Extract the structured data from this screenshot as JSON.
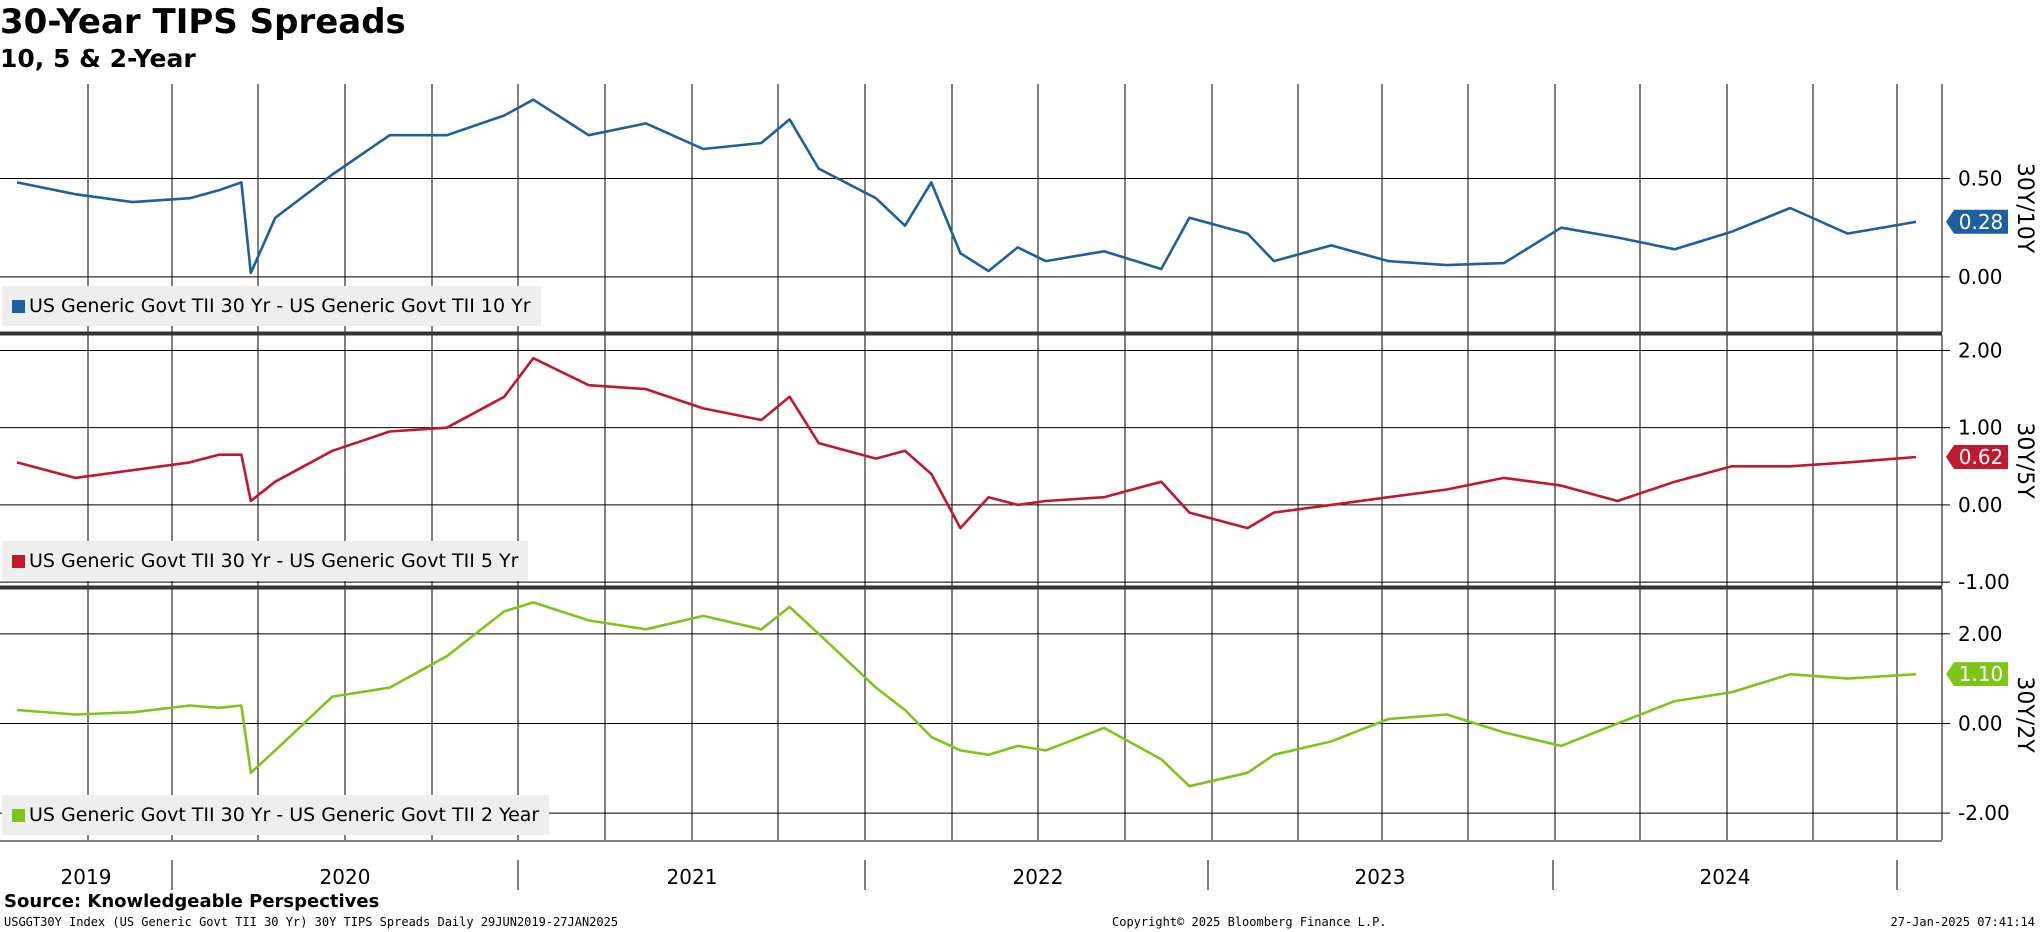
{
  "title": "30-Year TIPS Spreads",
  "subtitle": "10, 5 & 2-Year",
  "source": "Source: Knowledgeable Perspectives",
  "footer": {
    "left": "USGGT30Y Index (US Generic Govt TII 30 Yr) 30Y TIPS Spreads  Daily 29JUN2019-27JAN2025",
    "center": "Copyright© 2025 Bloomberg Finance L.P.",
    "right": "27-Jan-2025 07:41:14"
  },
  "x_axis": {
    "years": [
      "2019",
      "2020",
      "2021",
      "2022",
      "2023",
      "2024"
    ]
  },
  "chart_data": [
    {
      "type": "line",
      "axis_label": "30Y/10Y",
      "legend": "US Generic Govt TII 30 Yr - US Generic Govt TII 10 Yr",
      "color": "#1f5fa0",
      "last_value_label": "0.28",
      "y_ticks": [
        "0.50",
        "0.00"
      ],
      "ylim": [
        -0.28,
        0.98
      ],
      "x": [
        "2019-07",
        "2019-09",
        "2019-11",
        "2020-01",
        "2020-02",
        "2020-03-10",
        "2020-03-20",
        "2020-04",
        "2020-06",
        "2020-08",
        "2020-10",
        "2020-12",
        "2021-01",
        "2021-03",
        "2021-05",
        "2021-07",
        "2021-09",
        "2021-10",
        "2021-11",
        "2022-01",
        "2022-02",
        "2022-03",
        "2022-04",
        "2022-05",
        "2022-06",
        "2022-07",
        "2022-09",
        "2022-11",
        "2022-12",
        "2023-02",
        "2023-03",
        "2023-05",
        "2023-07",
        "2023-09",
        "2023-11",
        "2024-01",
        "2024-03",
        "2024-05",
        "2024-07",
        "2024-09",
        "2024-11",
        "2025-01-27"
      ],
      "y": [
        0.48,
        0.42,
        0.38,
        0.4,
        0.44,
        0.48,
        0.02,
        0.3,
        0.52,
        0.72,
        0.72,
        0.82,
        0.9,
        0.72,
        0.78,
        0.65,
        0.68,
        0.8,
        0.55,
        0.4,
        0.26,
        0.48,
        0.12,
        0.03,
        0.15,
        0.08,
        0.13,
        0.04,
        0.3,
        0.22,
        0.08,
        0.16,
        0.08,
        0.06,
        0.07,
        0.25,
        0.2,
        0.14,
        0.23,
        0.35,
        0.22,
        0.28
      ]
    },
    {
      "type": "line",
      "axis_label": "30Y/5Y",
      "legend": "US Generic Govt TII 30 Yr - US Generic Govt TII 5 Yr",
      "color": "#c0182f",
      "last_value_label": "0.62",
      "y_ticks": [
        "2.00",
        "1.00",
        "0.00",
        "-1.00"
      ],
      "ylim": [
        -1.05,
        2.2
      ],
      "x": [
        "2019-07",
        "2019-09",
        "2019-11",
        "2020-01",
        "2020-02",
        "2020-03-10",
        "2020-03-20",
        "2020-04",
        "2020-06",
        "2020-08",
        "2020-10",
        "2020-12",
        "2021-01",
        "2021-03",
        "2021-05",
        "2021-07",
        "2021-09",
        "2021-10",
        "2021-11",
        "2022-01",
        "2022-02",
        "2022-03",
        "2022-04",
        "2022-05",
        "2022-06",
        "2022-07",
        "2022-09",
        "2022-11",
        "2022-12",
        "2023-02",
        "2023-03",
        "2023-05",
        "2023-07",
        "2023-09",
        "2023-11",
        "2024-01",
        "2024-03",
        "2024-05",
        "2024-07",
        "2024-09",
        "2024-11",
        "2025-01-27"
      ],
      "y": [
        0.55,
        0.35,
        0.45,
        0.55,
        0.65,
        0.65,
        0.05,
        0.3,
        0.7,
        0.95,
        1.0,
        1.4,
        1.9,
        1.55,
        1.5,
        1.25,
        1.1,
        1.4,
        0.8,
        0.6,
        0.7,
        0.4,
        -0.3,
        0.1,
        0.0,
        0.05,
        0.1,
        0.3,
        -0.1,
        -0.3,
        -0.1,
        0.0,
        0.1,
        0.2,
        0.35,
        0.25,
        0.05,
        0.3,
        0.5,
        0.5,
        0.55,
        0.62
      ]
    },
    {
      "type": "line",
      "axis_label": "30Y/2Y",
      "legend": "US Generic Govt TII 30 Yr - US Generic Govt TII 2 Year",
      "color": "#7fc41a",
      "last_value_label": "1.10",
      "y_ticks": [
        "2.00",
        "0.00",
        "-2.00"
      ],
      "ylim": [
        -2.6,
        3.0
      ],
      "x": [
        "2019-07",
        "2019-09",
        "2019-11",
        "2020-01",
        "2020-02",
        "2020-03-10",
        "2020-03-20",
        "2020-04",
        "2020-06",
        "2020-08",
        "2020-10",
        "2020-12",
        "2021-01",
        "2021-03",
        "2021-05",
        "2021-07",
        "2021-09",
        "2021-10",
        "2021-11",
        "2022-01",
        "2022-02",
        "2022-03",
        "2022-04",
        "2022-05",
        "2022-06",
        "2022-07",
        "2022-09",
        "2022-11",
        "2022-12",
        "2023-02",
        "2023-03",
        "2023-05",
        "2023-07",
        "2023-09",
        "2023-11",
        "2024-01",
        "2024-03",
        "2024-05",
        "2024-07",
        "2024-09",
        "2024-11",
        "2025-01-27"
      ],
      "y": [
        0.3,
        0.2,
        0.25,
        0.4,
        0.35,
        0.4,
        -1.1,
        -0.6,
        0.6,
        0.8,
        1.5,
        2.5,
        2.7,
        2.3,
        2.1,
        2.4,
        2.1,
        2.6,
        2.0,
        0.8,
        0.3,
        -0.3,
        -0.6,
        -0.7,
        -0.5,
        -0.6,
        -0.1,
        -0.8,
        -1.4,
        -1.1,
        -0.7,
        -0.4,
        0.1,
        0.2,
        -0.2,
        -0.5,
        0.0,
        0.5,
        0.7,
        1.1,
        1.0,
        1.1
      ]
    }
  ]
}
